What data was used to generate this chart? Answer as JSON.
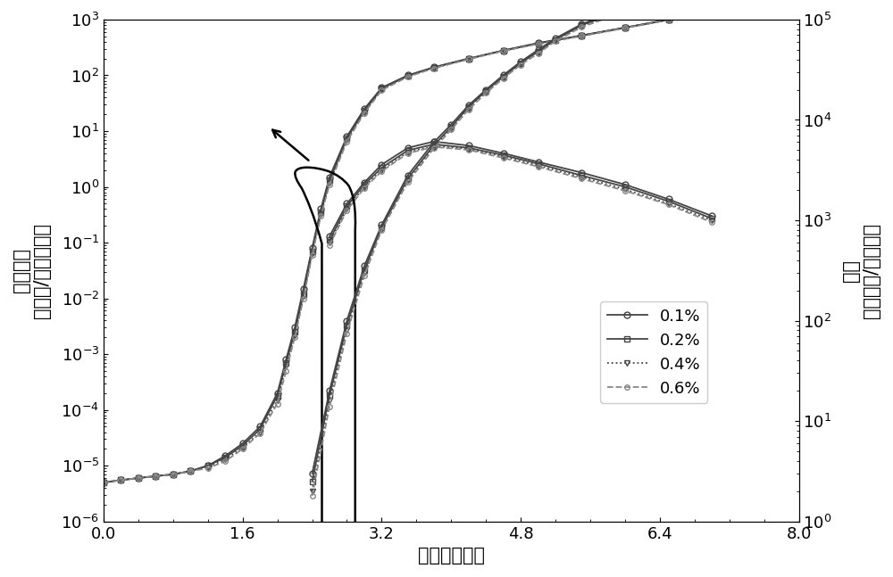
{
  "xlabel": "电压（伏特）",
  "ylabel_left": "电流密度\n（毫安/平方厘米）",
  "ylabel_right": "亮度\n（坤德拉/平方米）",
  "xlim": [
    0,
    8
  ],
  "xticks": [
    0,
    1.6,
    3.2,
    4.8,
    6.4,
    8
  ],
  "background_color": "#ffffff",
  "legend_labels": [
    "0.1%",
    "0.2%",
    "0.4%",
    "0.6%"
  ],
  "jv": {
    "01": {
      "v": [
        0.0,
        0.2,
        0.4,
        0.6,
        0.8,
        1.0,
        1.2,
        1.4,
        1.6,
        1.8,
        2.0,
        2.1,
        2.2,
        2.3,
        2.4,
        2.5,
        2.6,
        2.8,
        3.0,
        3.2,
        3.5,
        3.8,
        4.2,
        4.6,
        5.0,
        5.5,
        6.0,
        6.5,
        7.0
      ],
      "j": [
        5e-06,
        5.5e-06,
        6e-06,
        6.5e-06,
        7e-06,
        8e-06,
        1e-05,
        1.5e-05,
        2.5e-05,
        5e-05,
        0.0002,
        0.0008,
        0.003,
        0.015,
        0.08,
        0.4,
        1.5,
        8,
        25,
        60,
        100,
        140,
        200,
        280,
        380,
        520,
        720,
        1000,
        1400
      ],
      "ls": "-",
      "marker": "o",
      "color": "#444444",
      "ms": 5
    },
    "02": {
      "v": [
        0.0,
        0.2,
        0.4,
        0.6,
        0.8,
        1.0,
        1.2,
        1.4,
        1.6,
        1.8,
        2.0,
        2.1,
        2.2,
        2.3,
        2.4,
        2.5,
        2.6,
        2.8,
        3.0,
        3.2,
        3.5,
        3.8,
        4.2,
        4.6,
        5.0,
        5.5,
        6.0,
        6.5,
        7.0
      ],
      "j": [
        5e-06,
        5.5e-06,
        6e-06,
        6.5e-06,
        7e-06,
        8e-06,
        1e-05,
        1.4e-05,
        2.3e-05,
        4.5e-05,
        0.00018,
        0.0007,
        0.0025,
        0.012,
        0.07,
        0.35,
        1.3,
        7.5,
        23,
        58,
        98,
        138,
        198,
        278,
        375,
        515,
        715,
        990,
        1380
      ],
      "ls": "-",
      "marker": "s",
      "color": "#444444",
      "ms": 5
    },
    "04": {
      "v": [
        0.0,
        0.2,
        0.4,
        0.6,
        0.8,
        1.0,
        1.2,
        1.4,
        1.6,
        1.8,
        2.0,
        2.1,
        2.2,
        2.3,
        2.4,
        2.5,
        2.6,
        2.8,
        3.0,
        3.2,
        3.5,
        3.8,
        4.2,
        4.6,
        5.0,
        5.5,
        6.0,
        6.5,
        7.0
      ],
      "j": [
        5e-06,
        5.5e-06,
        6e-06,
        6.5e-06,
        7e-06,
        8e-06,
        9.5e-06,
        1.3e-05,
        2.1e-05,
        4e-05,
        0.00015,
        0.0006,
        0.0022,
        0.011,
        0.065,
        0.32,
        1.2,
        7.0,
        22,
        56,
        96,
        136,
        196,
        276,
        370,
        510,
        710,
        985,
        1370
      ],
      "ls": ":",
      "marker": "v",
      "color": "#444444",
      "ms": 5
    },
    "06": {
      "v": [
        0.0,
        0.2,
        0.4,
        0.6,
        0.8,
        1.0,
        1.2,
        1.4,
        1.6,
        1.8,
        2.0,
        2.1,
        2.2,
        2.3,
        2.4,
        2.5,
        2.6,
        2.8,
        3.0,
        3.2,
        3.5,
        3.8,
        4.2,
        4.6,
        5.0,
        5.5,
        6.0,
        6.5,
        7.0
      ],
      "j": [
        5e-06,
        5.5e-06,
        6e-06,
        6.5e-06,
        7e-06,
        8e-06,
        9e-06,
        1.2e-05,
        2e-05,
        3.8e-05,
        0.00013,
        0.0005,
        0.002,
        0.01,
        0.06,
        0.3,
        1.1,
        6.5,
        21,
        54,
        94,
        134,
        194,
        274,
        365,
        505,
        705,
        980,
        1360
      ],
      "ls": "--",
      "marker": "o",
      "color": "#888888",
      "ms": 4
    }
  },
  "lv": {
    "01": {
      "v": [
        2.4,
        2.6,
        2.8,
        3.0,
        3.2,
        3.5,
        3.8,
        4.0,
        4.2,
        4.4,
        4.6,
        4.8,
        5.0,
        5.2,
        5.5,
        6.0,
        6.5,
        7.0
      ],
      "lum": [
        3,
        20,
        100,
        350,
        900,
        2800,
        6000,
        9000,
        14000,
        20000,
        28000,
        38000,
        50000,
        65000,
        90000,
        130000,
        170000,
        220000
      ],
      "ls": "-",
      "marker": "o",
      "color": "#444444",
      "ms": 5
    },
    "02": {
      "v": [
        2.4,
        2.6,
        2.8,
        3.0,
        3.2,
        3.5,
        3.8,
        4.0,
        4.2,
        4.4,
        4.6,
        4.8,
        5.0,
        5.2,
        5.5,
        6.0,
        6.5,
        7.0
      ],
      "lum": [
        2.5,
        18,
        90,
        320,
        850,
        2600,
        5600,
        8500,
        13500,
        19500,
        27000,
        37000,
        48000,
        63000,
        88000,
        125000,
        165000,
        210000
      ],
      "ls": "-",
      "marker": "s",
      "color": "#444444",
      "ms": 5
    },
    "04": {
      "v": [
        2.4,
        2.6,
        2.8,
        3.0,
        3.2,
        3.5,
        3.8,
        4.0,
        4.2,
        4.4,
        4.6,
        4.8,
        5.0,
        5.2,
        5.5,
        6.0,
        6.5,
        7.0
      ],
      "lum": [
        2.0,
        16,
        80,
        300,
        820,
        2500,
        5400,
        8200,
        13000,
        19000,
        26500,
        36000,
        47000,
        62000,
        86000,
        122000,
        162000,
        205000
      ],
      "ls": ":",
      "marker": "v",
      "color": "#444444",
      "ms": 5
    },
    "06": {
      "v": [
        2.4,
        2.6,
        2.8,
        3.0,
        3.2,
        3.5,
        3.8,
        4.0,
        4.2,
        4.4,
        4.6,
        4.8,
        5.0,
        5.2,
        5.5,
        6.0,
        6.5,
        7.0
      ],
      "lum": [
        1.8,
        14,
        75,
        280,
        800,
        2400,
        5200,
        8000,
        12700,
        18500,
        26000,
        35500,
        46000,
        61000,
        84000,
        120000,
        160000,
        202000
      ],
      "ls": "--",
      "marker": "o",
      "color": "#888888",
      "ms": 4
    }
  },
  "eff": {
    "01": {
      "v": [
        2.6,
        2.8,
        3.0,
        3.2,
        3.5,
        3.8,
        4.2,
        4.6,
        5.0,
        5.5,
        6.0,
        6.5,
        7.0
      ],
      "eff": [
        0.13,
        0.5,
        1.2,
        2.5,
        5.0,
        6.5,
        5.5,
        4.0,
        2.8,
        1.8,
        1.1,
        0.6,
        0.3
      ],
      "ls": "-",
      "marker": "o",
      "color": "#444444",
      "ms": 5
    },
    "02": {
      "v": [
        2.6,
        2.8,
        3.0,
        3.2,
        3.5,
        3.8,
        4.2,
        4.6,
        5.0,
        5.5,
        6.0,
        6.5,
        7.0
      ],
      "eff": [
        0.11,
        0.45,
        1.1,
        2.2,
        4.5,
        5.8,
        5.0,
        3.7,
        2.6,
        1.6,
        1.0,
        0.55,
        0.27
      ],
      "ls": "-",
      "marker": "s",
      "color": "#444444",
      "ms": 5
    },
    "04": {
      "v": [
        2.6,
        2.8,
        3.0,
        3.2,
        3.5,
        3.8,
        4.2,
        4.6,
        5.0,
        5.5,
        6.0,
        6.5,
        7.0
      ],
      "eff": [
        0.1,
        0.4,
        1.0,
        2.0,
        4.2,
        5.4,
        4.8,
        3.5,
        2.4,
        1.5,
        0.9,
        0.5,
        0.25
      ],
      "ls": ":",
      "marker": "v",
      "color": "#444444",
      "ms": 5
    },
    "06": {
      "v": [
        2.6,
        2.8,
        3.0,
        3.2,
        3.5,
        3.8,
        4.2,
        4.6,
        5.0,
        5.5,
        6.0,
        6.5,
        7.0
      ],
      "eff": [
        0.09,
        0.38,
        0.95,
        1.9,
        4.0,
        5.2,
        4.6,
        3.3,
        2.3,
        1.4,
        0.85,
        0.48,
        0.23
      ],
      "ls": "--",
      "marker": "o",
      "color": "#888888",
      "ms": 4
    }
  },
  "font_size_label": 15,
  "font_size_tick": 13,
  "font_size_legend": 13
}
